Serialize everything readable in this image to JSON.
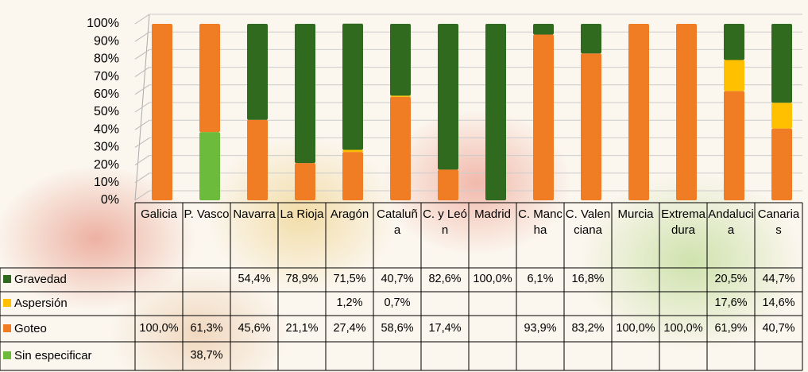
{
  "chart_data": {
    "type": "stacked-bar",
    "categories": [
      "Galicia",
      "P. Vasco",
      "Navarra",
      "La Rioja",
      "Aragón",
      "Cataluña",
      "C. y León",
      "Madrid",
      "C. Mancha",
      "C. Valenciana",
      "Murcia",
      "Extremadura",
      "Andalucia",
      "Canarias"
    ],
    "series": [
      {
        "name": "Gravedad",
        "color": "#2f6a1f",
        "values": [
          null,
          null,
          54.4,
          78.9,
          71.5,
          40.7,
          82.6,
          100.0,
          6.1,
          16.8,
          null,
          null,
          20.5,
          44.7
        ],
        "value_labels": [
          null,
          null,
          "54,4%",
          "78,9%",
          "71,5%",
          "40,7%",
          "82,6%",
          "100,0%",
          "6,1%",
          "16,8%",
          null,
          null,
          "20,5%",
          "44,7%"
        ]
      },
      {
        "name": "Aspersión",
        "color": "#ffc000",
        "values": [
          null,
          null,
          null,
          null,
          1.2,
          0.7,
          null,
          null,
          null,
          null,
          null,
          null,
          17.6,
          14.6
        ],
        "value_labels": [
          null,
          null,
          null,
          null,
          "1,2%",
          "0,7%",
          null,
          null,
          null,
          null,
          null,
          null,
          "17,6%",
          "14,6%"
        ]
      },
      {
        "name": "Goteo",
        "color": "#f07c23",
        "values": [
          100.0,
          61.3,
          45.6,
          21.1,
          27.4,
          58.6,
          17.4,
          null,
          93.9,
          83.2,
          100.0,
          100.0,
          61.9,
          40.7
        ],
        "value_labels": [
          "100,0%",
          "61,3%",
          "45,6%",
          "21,1%",
          "27,4%",
          "58,6%",
          "17,4%",
          null,
          "93,9%",
          "83,2%",
          "100,0%",
          "100,0%",
          "61,9%",
          "40,7%"
        ]
      },
      {
        "name": "Sin especificar",
        "color": "#6dbb3c",
        "values": [
          null,
          38.7,
          null,
          null,
          null,
          null,
          null,
          null,
          null,
          null,
          null,
          null,
          null,
          null
        ],
        "value_labels": [
          null,
          "38,7%",
          null,
          null,
          null,
          null,
          null,
          null,
          null,
          null,
          null,
          null,
          null,
          null
        ]
      }
    ],
    "ylim": [
      0,
      100
    ],
    "yticks": [
      {
        "value": 0,
        "label": "0%"
      },
      {
        "value": 10,
        "label": "10%"
      },
      {
        "value": 20,
        "label": "20%"
      },
      {
        "value": 30,
        "label": "30%"
      },
      {
        "value": 40,
        "label": "40%"
      },
      {
        "value": 50,
        "label": "50%"
      },
      {
        "value": 60,
        "label": "60%"
      },
      {
        "value": 70,
        "label": "70%"
      },
      {
        "value": 80,
        "label": "80%"
      },
      {
        "value": 90,
        "label": "90%"
      },
      {
        "value": 100,
        "label": "100%"
      }
    ],
    "grid": true
  }
}
